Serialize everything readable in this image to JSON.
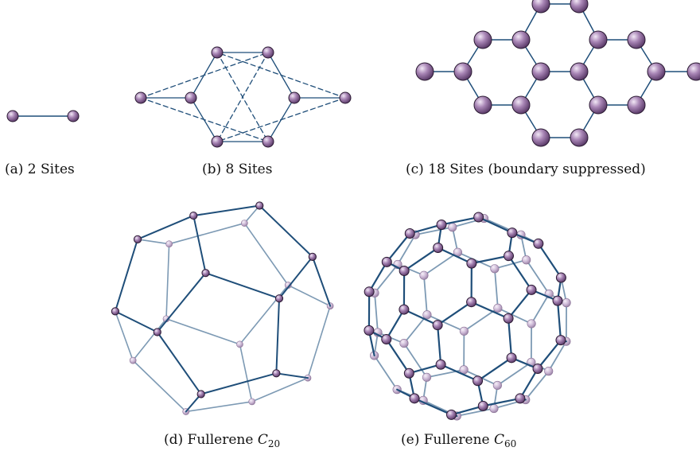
{
  "panels": [
    {
      "id": "a",
      "caption": "(a) 2 Sites"
    },
    {
      "id": "b",
      "caption": "(b) 8 Sites"
    },
    {
      "id": "c",
      "caption": "(c) 18 Sites (boundary suppressed)"
    },
    {
      "id": "d",
      "caption_prefix": "(d) Fullerene ",
      "caption_symbol": "C",
      "caption_subscript": "20"
    },
    {
      "id": "e",
      "caption_prefix": "(e) Fullerene ",
      "caption_symbol": "C",
      "caption_subscript": "60"
    }
  ],
  "colors": {
    "edge": "#1f4e79",
    "edge_back": "#7d9ab4",
    "node": "#9a7aa8",
    "node_light": "#e3d3ea",
    "node_dark": "#5e3f6c",
    "node_back": "#c9b6d2"
  }
}
